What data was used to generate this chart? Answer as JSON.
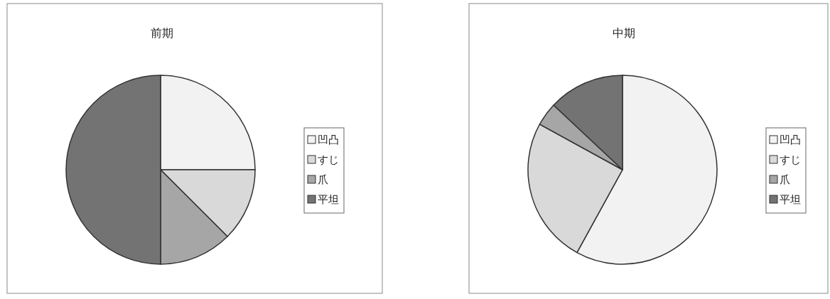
{
  "chart_data": [
    {
      "type": "pie",
      "title": "前期",
      "categories": [
        "凹凸",
        "すじ",
        "爪",
        "平坦"
      ],
      "values": [
        25,
        12.5,
        12.5,
        50
      ],
      "colors": [
        "#f2f2f2",
        "#d9d9d9",
        "#a6a6a6",
        "#737373"
      ],
      "legend": "right"
    },
    {
      "type": "pie",
      "title": "中期",
      "categories": [
        "凹凸",
        "すじ",
        "爪",
        "平坦"
      ],
      "values": [
        58,
        25,
        4,
        13
      ],
      "colors": [
        "#f2f2f2",
        "#d9d9d9",
        "#a6a6a6",
        "#737373"
      ],
      "legend": "right"
    }
  ]
}
